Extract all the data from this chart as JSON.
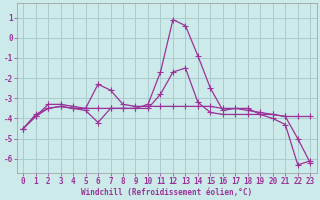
{
  "xlabel": "Windchill (Refroidissement éolien,°C)",
  "bg_color": "#cceaea",
  "grid_color": "#aacccc",
  "line_color": "#993399",
  "xlim": [
    -0.5,
    23.5
  ],
  "ylim": [
    -6.7,
    1.7
  ],
  "xticks": [
    0,
    1,
    2,
    3,
    4,
    5,
    6,
    7,
    8,
    9,
    10,
    11,
    12,
    13,
    14,
    15,
    16,
    17,
    18,
    19,
    20,
    21,
    22,
    23
  ],
  "yticks": [
    -6,
    -5,
    -4,
    -3,
    -2,
    -1,
    0,
    1
  ],
  "series1_x": [
    0,
    1,
    2,
    3,
    4,
    5,
    6,
    7,
    8,
    9,
    10,
    11,
    12,
    13,
    14,
    15,
    16,
    17,
    18,
    19,
    20,
    21,
    22,
    23
  ],
  "series1_y": [
    -4.5,
    -3.9,
    -3.3,
    -3.3,
    -3.4,
    -3.5,
    -2.3,
    -2.6,
    -3.3,
    -3.4,
    -3.4,
    -3.4,
    -3.4,
    -3.4,
    -3.4,
    -3.4,
    -3.5,
    -3.5,
    -3.6,
    -3.7,
    -3.8,
    -3.9,
    -3.9,
    -3.9
  ],
  "series2_x": [
    0,
    1,
    2,
    3,
    4,
    5,
    6,
    7,
    8,
    9,
    10,
    11,
    12,
    13,
    14,
    15,
    16,
    17,
    18,
    19,
    20,
    21,
    22,
    23
  ],
  "series2_y": [
    -4.5,
    -3.9,
    -3.5,
    -3.4,
    -3.5,
    -3.6,
    -4.2,
    -3.5,
    -3.5,
    -3.5,
    -3.3,
    -1.7,
    0.9,
    0.6,
    -0.9,
    -2.5,
    -3.6,
    -3.5,
    -3.5,
    -3.8,
    -4.0,
    -4.3,
    -6.3,
    -6.1
  ],
  "series3_x": [
    0,
    1,
    2,
    3,
    4,
    5,
    6,
    7,
    8,
    9,
    10,
    11,
    12,
    13,
    14,
    15,
    16,
    17,
    18,
    19,
    20,
    21,
    22,
    23
  ],
  "series3_y": [
    -4.5,
    -3.8,
    -3.5,
    -3.4,
    -3.5,
    -3.5,
    -3.5,
    -3.5,
    -3.5,
    -3.5,
    -3.5,
    -2.8,
    -1.7,
    -1.5,
    -3.2,
    -3.7,
    -3.8,
    -3.8,
    -3.8,
    -3.8,
    -3.8,
    -3.9,
    -5.0,
    -6.2
  ],
  "tick_fontsize": 5.5,
  "xlabel_fontsize": 5.5,
  "marker_size": 2.5,
  "line_width": 0.9
}
